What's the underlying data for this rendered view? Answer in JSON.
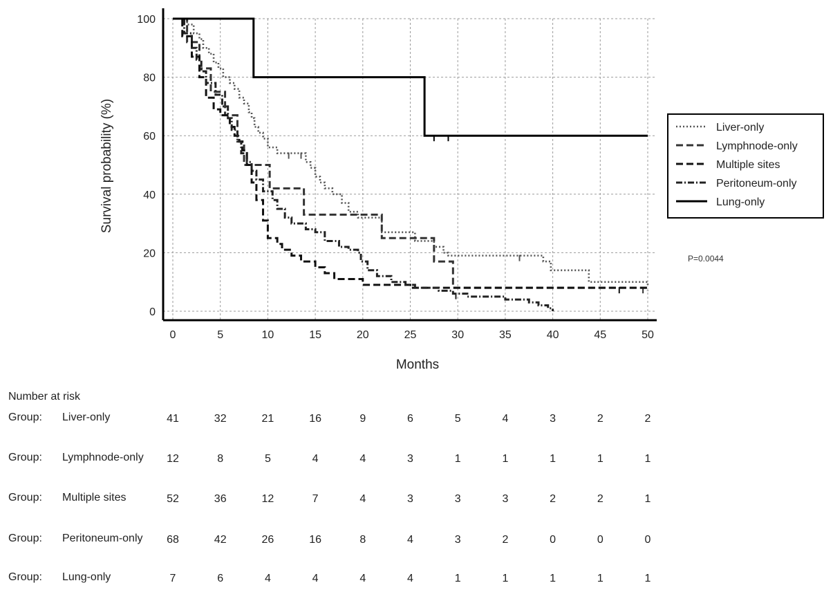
{
  "chart_data": {
    "type": "line",
    "subtype": "kaplan-meier",
    "xlabel": "Months",
    "ylabel": "Survival probability (%)",
    "xlim": [
      0,
      50
    ],
    "ylim": [
      0,
      100
    ],
    "x_ticks": [
      0,
      5,
      10,
      15,
      20,
      25,
      30,
      35,
      40,
      45,
      50
    ],
    "y_ticks": [
      0,
      20,
      40,
      60,
      80,
      100
    ],
    "grid": true,
    "legend_position": "right",
    "annotation": "P=0.0044",
    "series": [
      {
        "name": "Liver-only",
        "line_style": "dotted",
        "color": "#555555",
        "steps": [
          [
            0,
            100
          ],
          [
            1.5,
            98
          ],
          [
            2.2,
            95
          ],
          [
            2.8,
            93
          ],
          [
            3.2,
            90
          ],
          [
            3.8,
            88
          ],
          [
            4.3,
            85
          ],
          [
            4.8,
            83
          ],
          [
            5.3,
            80
          ],
          [
            6.0,
            78
          ],
          [
            6.5,
            76
          ],
          [
            7.0,
            73
          ],
          [
            7.5,
            71
          ],
          [
            8.0,
            68
          ],
          [
            8.3,
            66
          ],
          [
            8.6,
            63
          ],
          [
            9.0,
            61
          ],
          [
            9.5,
            59
          ],
          [
            10.0,
            56
          ],
          [
            11.0,
            54
          ],
          [
            13.0,
            54
          ],
          [
            14.0,
            51
          ],
          [
            14.5,
            49
          ],
          [
            15.0,
            46
          ],
          [
            15.5,
            44
          ],
          [
            16.0,
            42
          ],
          [
            16.8,
            40
          ],
          [
            17.8,
            37
          ],
          [
            18.5,
            34
          ],
          [
            19.5,
            32
          ],
          [
            22.0,
            27
          ],
          [
            25.5,
            24
          ],
          [
            27.5,
            22
          ],
          [
            28.5,
            20
          ],
          [
            29.0,
            19
          ],
          [
            38.0,
            19
          ],
          [
            39.0,
            17
          ],
          [
            39.8,
            14
          ],
          [
            43.0,
            14
          ],
          [
            43.8,
            10
          ],
          [
            44.5,
            10
          ],
          [
            50,
            9
          ]
        ],
        "censor_x": [
          12.2,
          13.5,
          36.5
        ]
      },
      {
        "name": "Lymphnode-only",
        "line_style": "dashed",
        "color": "#333333",
        "steps": [
          [
            0,
            100
          ],
          [
            1.5,
            92
          ],
          [
            2.8,
            83
          ],
          [
            4.0,
            75
          ],
          [
            5.5,
            67
          ],
          [
            6.8,
            58
          ],
          [
            7.5,
            50
          ],
          [
            9.0,
            50
          ],
          [
            10.2,
            42
          ],
          [
            13.5,
            42
          ],
          [
            13.8,
            33
          ],
          [
            21.5,
            33
          ],
          [
            22.0,
            25
          ],
          [
            27.0,
            25
          ],
          [
            27.5,
            17
          ],
          [
            29.0,
            17
          ],
          [
            29.5,
            8
          ],
          [
            50,
            8
          ]
        ],
        "censor_x": [
          49.5
        ]
      },
      {
        "name": "Multiple sites",
        "line_style": "dashed",
        "color": "#111111",
        "steps": [
          [
            0,
            100
          ],
          [
            1.0,
            94
          ],
          [
            2.0,
            87
          ],
          [
            2.8,
            80
          ],
          [
            3.5,
            73
          ],
          [
            4.3,
            69
          ],
          [
            5.0,
            67
          ],
          [
            6.0,
            63
          ],
          [
            6.5,
            60
          ],
          [
            7.0,
            58
          ],
          [
            7.3,
            55
          ],
          [
            7.8,
            50
          ],
          [
            8.3,
            44
          ],
          [
            8.8,
            38
          ],
          [
            9.5,
            31
          ],
          [
            10.0,
            25
          ],
          [
            11.0,
            23
          ],
          [
            11.5,
            21
          ],
          [
            12.5,
            19
          ],
          [
            13.5,
            17
          ],
          [
            15.0,
            15
          ],
          [
            16.0,
            13
          ],
          [
            17.0,
            11
          ],
          [
            19.0,
            11
          ],
          [
            20.0,
            9
          ],
          [
            24.0,
            9
          ],
          [
            25.0,
            8
          ],
          [
            50,
            7
          ]
        ],
        "censor_x": [
          47.0
        ]
      },
      {
        "name": "Peritoneum-only",
        "line_style": "dashdot",
        "color": "#222222",
        "steps": [
          [
            0,
            100
          ],
          [
            1.2,
            95
          ],
          [
            2.0,
            90
          ],
          [
            2.5,
            86
          ],
          [
            3.0,
            82
          ],
          [
            3.5,
            78
          ],
          [
            4.5,
            74
          ],
          [
            5.2,
            70
          ],
          [
            5.8,
            66
          ],
          [
            6.2,
            62
          ],
          [
            6.8,
            58
          ],
          [
            7.2,
            54
          ],
          [
            7.8,
            51
          ],
          [
            8.3,
            48
          ],
          [
            8.8,
            45
          ],
          [
            9.5,
            41
          ],
          [
            10.5,
            38
          ],
          [
            11.0,
            35
          ],
          [
            11.8,
            32
          ],
          [
            12.5,
            30
          ],
          [
            14.0,
            28
          ],
          [
            15.0,
            27
          ],
          [
            16.0,
            24
          ],
          [
            17.5,
            22
          ],
          [
            18.5,
            21
          ],
          [
            19.5,
            20
          ],
          [
            19.8,
            17
          ],
          [
            20.5,
            14
          ],
          [
            21.5,
            12
          ],
          [
            23.0,
            10
          ],
          [
            24.5,
            9
          ],
          [
            25.5,
            8
          ],
          [
            28.0,
            7
          ],
          [
            29.5,
            6
          ],
          [
            30.5,
            6
          ],
          [
            31.0,
            5
          ],
          [
            34.5,
            5
          ],
          [
            35.0,
            4
          ],
          [
            37.0,
            4
          ],
          [
            37.5,
            3
          ],
          [
            38.5,
            2
          ],
          [
            39.5,
            1
          ],
          [
            40.0,
            0
          ]
        ],
        "censor_x": [
          29.8
        ]
      },
      {
        "name": "Lung-only",
        "line_style": "solid",
        "color": "#000000",
        "steps": [
          [
            0,
            100
          ],
          [
            8.5,
            100
          ],
          [
            8.5,
            80
          ],
          [
            26.5,
            80
          ],
          [
            26.5,
            60
          ],
          [
            50,
            60
          ]
        ],
        "censor_x": [
          27.5,
          29.0
        ]
      }
    ],
    "number_at_risk": {
      "title": "Number at risk",
      "group_prefix": "Group:",
      "rows": [
        {
          "group": "Liver-only",
          "values": [
            "41",
            "32",
            "21",
            "16",
            "9",
            "6",
            "5",
            "4",
            "3",
            "2",
            "2"
          ]
        },
        {
          "group": "Lymphnode-only",
          "values": [
            "12",
            "8",
            "5",
            "4",
            "4",
            "3",
            "1",
            "1",
            "1",
            "1",
            "1"
          ]
        },
        {
          "group": "Multiple sites",
          "values": [
            "52",
            "36",
            "12",
            "7",
            "4",
            "3",
            "3",
            "3",
            "2",
            "2",
            "1"
          ]
        },
        {
          "group": "Peritoneum-only",
          "values": [
            "68",
            "42",
            "26",
            "16",
            "8",
            "4",
            "3",
            "2",
            "0",
            "0",
            "0"
          ]
        },
        {
          "group": "Lung-only",
          "values": [
            "7",
            "6",
            "4",
            "4",
            "4",
            "4",
            "1",
            "1",
            "1",
            "1",
            "1"
          ]
        }
      ]
    }
  }
}
